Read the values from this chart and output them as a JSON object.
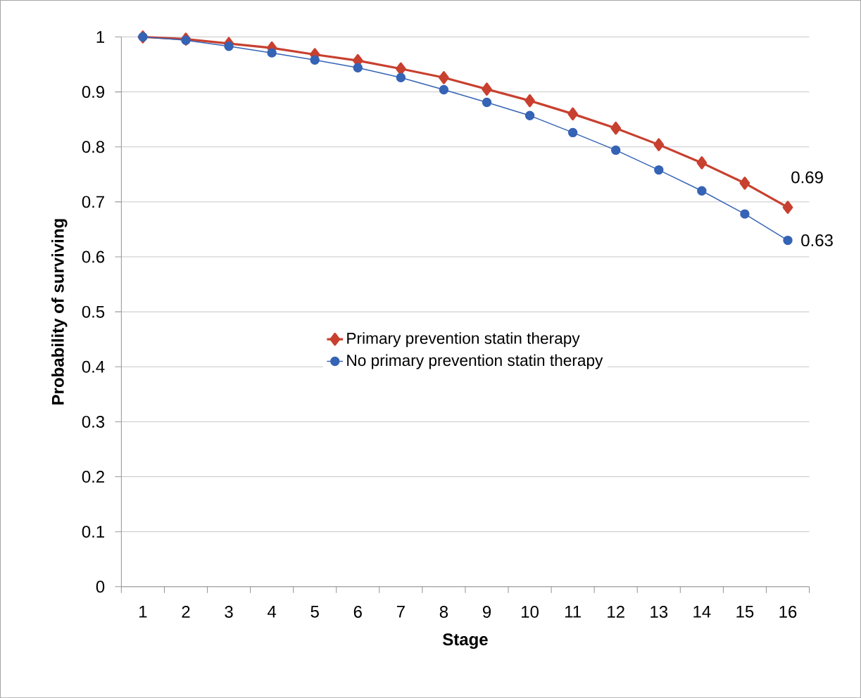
{
  "chart_data": {
    "type": "line",
    "xlabel": "Stage",
    "ylabel": "Probability of surviving",
    "categories": [
      "1",
      "2",
      "3",
      "4",
      "5",
      "6",
      "7",
      "8",
      "9",
      "10",
      "11",
      "12",
      "13",
      "14",
      "15",
      "16"
    ],
    "series": [
      {
        "name": "Primary prevention statin therapy",
        "color": "#c8402f",
        "marker": "diamond",
        "values": [
          1.0,
          0.996,
          0.988,
          0.98,
          0.968,
          0.957,
          0.942,
          0.926,
          0.905,
          0.884,
          0.86,
          0.834,
          0.804,
          0.771,
          0.734,
          0.69
        ],
        "value_labels": [
          null,
          null,
          null,
          null,
          null,
          null,
          null,
          null,
          null,
          null,
          null,
          null,
          null,
          null,
          null,
          "0.69"
        ]
      },
      {
        "name": "No primary prevention statin therapy",
        "color": "#3563b5",
        "marker": "circle",
        "values": [
          1.0,
          0.994,
          0.983,
          0.971,
          0.958,
          0.944,
          0.926,
          0.904,
          0.881,
          0.857,
          0.826,
          0.794,
          0.758,
          0.72,
          0.678,
          0.63
        ],
        "value_labels": [
          null,
          null,
          null,
          null,
          null,
          null,
          null,
          null,
          null,
          null,
          null,
          null,
          null,
          null,
          null,
          "0.63"
        ]
      }
    ],
    "ylim": [
      0,
      1
    ],
    "yticks": [
      0,
      0.1,
      0.2,
      0.3,
      0.4,
      0.5,
      0.6,
      0.7,
      0.8,
      0.9,
      1
    ],
    "grid": "y",
    "legend": "center"
  }
}
